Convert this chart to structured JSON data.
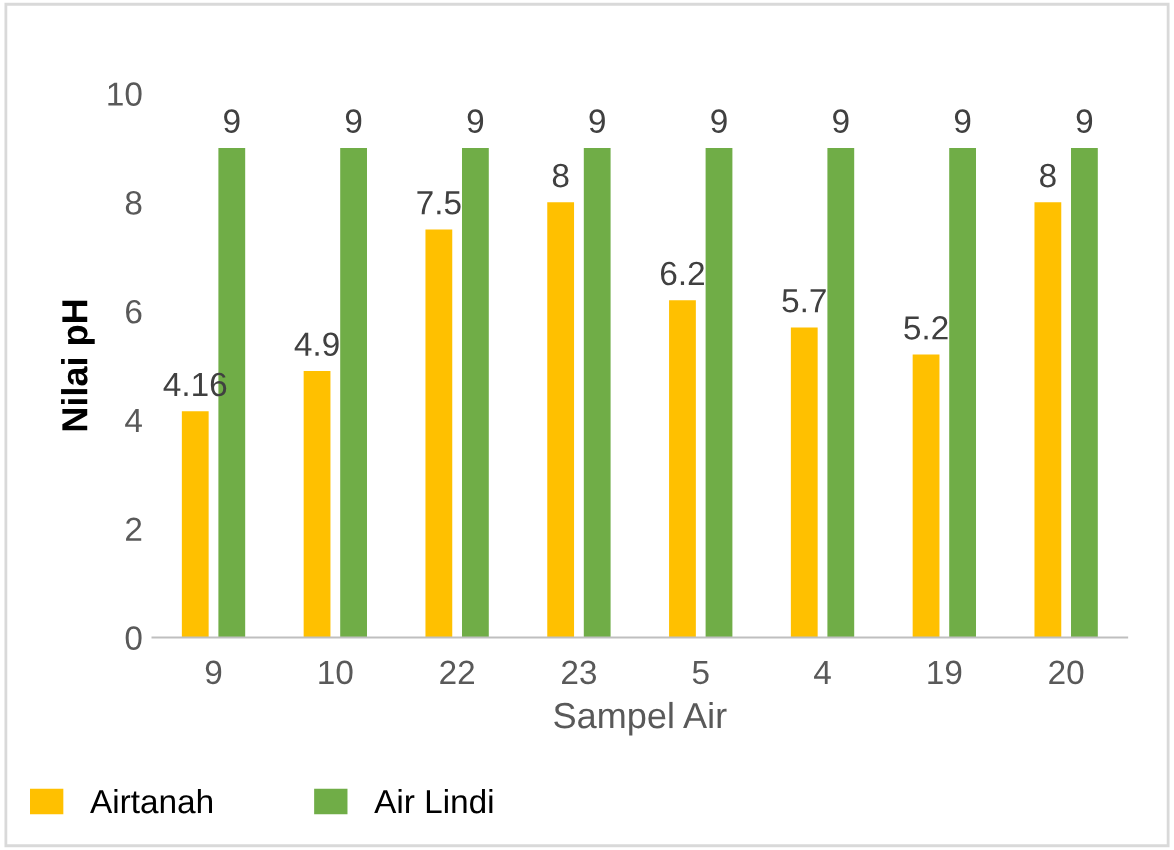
{
  "chart_data": {
    "type": "bar",
    "xlabel": "Sampel Air",
    "ylabel": "Nilai pH",
    "categories": [
      "9",
      "10",
      "22",
      "23",
      "5",
      "4",
      "19",
      "20"
    ],
    "series": [
      {
        "name": "Airtanah",
        "color": "#ffc000",
        "values": [
          4.16,
          4.9,
          7.5,
          8,
          6.2,
          5.7,
          5.2,
          8
        ]
      },
      {
        "name": "Air Lindi",
        "color": "#70ad47",
        "values": [
          9,
          9,
          9,
          9,
          9,
          9,
          9,
          9
        ]
      }
    ],
    "ylim": [
      0,
      10
    ],
    "yticks": [
      0,
      2,
      4,
      6,
      8,
      10
    ],
    "data_labels": true,
    "legend": "bottom",
    "grid": false
  }
}
